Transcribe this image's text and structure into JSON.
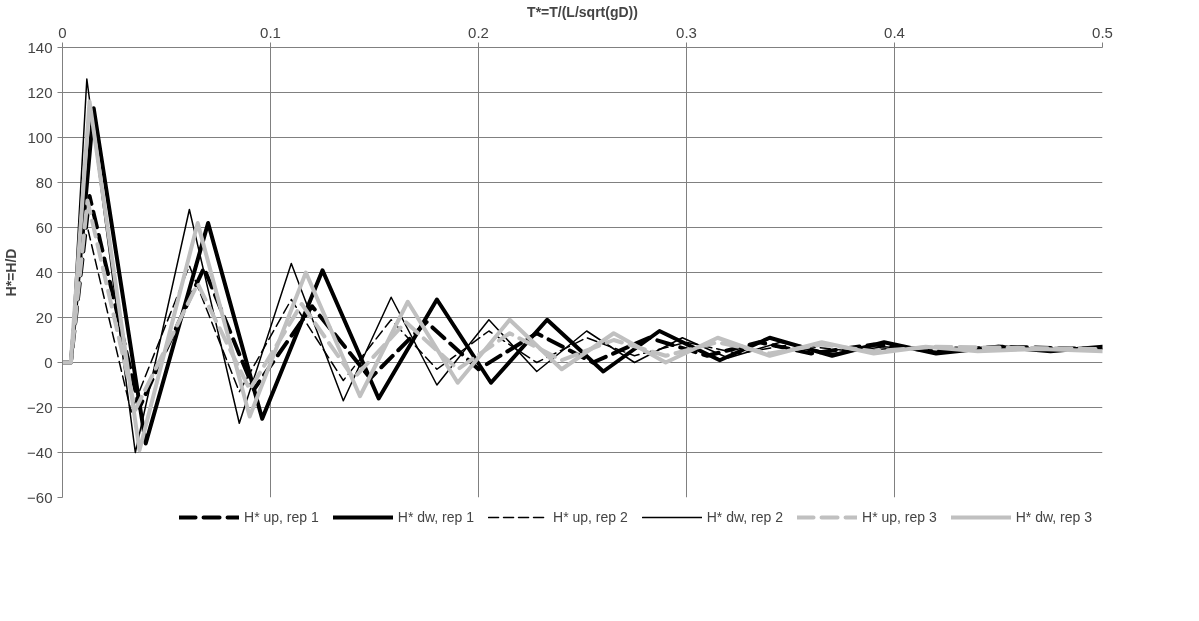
{
  "chart_data": {
    "type": "line",
    "xlabel": "T*=T/(L/sqrt(gD))",
    "ylabel": "H*=H/D",
    "xlim": [
      0,
      0.5
    ],
    "xticks": [
      0,
      0.1,
      0.2,
      0.3,
      0.4,
      0.5
    ],
    "ylim": [
      -60,
      140
    ],
    "yticks": [
      -60,
      -40,
      -20,
      0,
      20,
      40,
      60,
      80,
      100,
      120,
      140
    ],
    "grid": true,
    "legend": "bottom",
    "marker": "none",
    "series": [
      {
        "name": "H* up, rep 1",
        "color": "#000000",
        "line_style": "dashed",
        "x": [
          0,
          0.004,
          0.013,
          0.037,
          0.068,
          0.092,
          0.12,
          0.148,
          0.175,
          0.2,
          0.228,
          0.255,
          0.282,
          0.31,
          0.335,
          0.36,
          0.39,
          0.42,
          0.45,
          0.5
        ],
        "values": [
          0,
          0,
          74,
          -20,
          42,
          -12,
          25,
          -7,
          18,
          -3,
          13,
          0,
          11,
          3,
          9,
          4,
          8,
          5,
          7,
          6
        ]
      },
      {
        "name": "H* dw, rep 1",
        "color": "#000000",
        "line_style": "solid",
        "x": [
          0,
          0.004,
          0.015,
          0.04,
          0.07,
          0.096,
          0.125,
          0.152,
          0.18,
          0.206,
          0.233,
          0.26,
          0.287,
          0.316,
          0.34,
          0.37,
          0.395,
          0.42,
          0.45,
          0.475,
          0.5
        ],
        "values": [
          0,
          0,
          113,
          -36,
          62,
          -25,
          41,
          -16,
          28,
          -9,
          19,
          -4,
          14,
          1,
          11,
          3,
          9,
          4,
          7,
          5,
          7
        ]
      },
      {
        "name": "H* up, rep 2",
        "color": "#000000",
        "line_style": "dashed",
        "x": [
          0,
          0.004,
          0.011,
          0.033,
          0.061,
          0.085,
          0.11,
          0.135,
          0.158,
          0.18,
          0.205,
          0.228,
          0.252,
          0.275,
          0.3,
          0.325,
          0.35,
          0.38,
          0.41,
          0.5
        ],
        "values": [
          0,
          0,
          64,
          -22,
          43,
          -13,
          28,
          -8,
          19,
          -3,
          14,
          0,
          11,
          3,
          9,
          4,
          8,
          5,
          7,
          6
        ]
      },
      {
        "name": "H* dw, rep 2",
        "color": "#000000",
        "line_style": "solid",
        "x": [
          0,
          0.004,
          0.0117,
          0.035,
          0.061,
          0.085,
          0.11,
          0.135,
          0.158,
          0.18,
          0.205,
          0.228,
          0.252,
          0.275,
          0.298,
          0.32,
          0.345,
          0.37,
          0.395,
          0.42,
          0.45,
          0.5
        ],
        "values": [
          0,
          0,
          126,
          -40,
          68,
          -27,
          44,
          -17,
          29,
          -10,
          19,
          -4,
          14,
          0,
          11,
          2,
          9,
          4,
          7,
          5,
          6,
          6
        ]
      },
      {
        "name": "H* up, rep 3",
        "color": "#c0c0c0",
        "line_style": "dashed",
        "x": [
          0,
          0.004,
          0.012,
          0.035,
          0.065,
          0.09,
          0.115,
          0.14,
          0.165,
          0.19,
          0.215,
          0.24,
          0.265,
          0.29,
          0.315,
          0.34,
          0.365,
          0.39,
          0.42,
          0.5
        ],
        "values": [
          0,
          0,
          72,
          -21,
          35,
          -12,
          26,
          -7,
          18,
          -3,
          13,
          1,
          10,
          3,
          9,
          4,
          8,
          5,
          7,
          6
        ]
      },
      {
        "name": "H* dw, rep 3",
        "color": "#c0c0c0",
        "line_style": "solid",
        "x": [
          0,
          0.004,
          0.013,
          0.037,
          0.065,
          0.09,
          0.117,
          0.143,
          0.166,
          0.19,
          0.215,
          0.24,
          0.265,
          0.29,
          0.315,
          0.34,
          0.365,
          0.39,
          0.415,
          0.44,
          0.47,
          0.5
        ],
        "values": [
          0,
          0,
          116,
          -39,
          62,
          -24,
          40,
          -15,
          27,
          -9,
          19,
          -3,
          13,
          0,
          11,
          3,
          9,
          4,
          7,
          5,
          6,
          5
        ]
      }
    ]
  }
}
